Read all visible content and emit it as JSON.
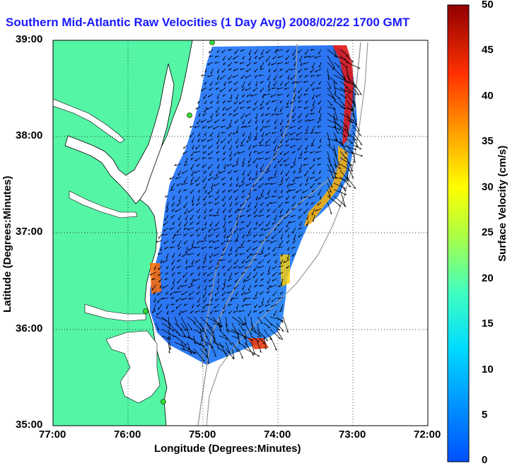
{
  "title": "Southern Mid-Atlantic Raw Velocities (1 Day Avg) 2008/02/22 1700 GMT",
  "map": {
    "xlabel": "Longitude (Degrees:Minutes)",
    "ylabel": "Latitude (Degrees:Minutes)",
    "x_ticks": [
      "77:00",
      "76:00",
      "75:00",
      "74:00",
      "73:00",
      "72:00"
    ],
    "y_ticks": [
      "39:00",
      "38:00",
      "37:00",
      "36:00",
      "35:00"
    ],
    "land_color": "#55f5a6",
    "grid": "dotted"
  },
  "colorbar": {
    "label": "Surface Velocity (cm/s)",
    "ticks": [
      "50",
      "45",
      "40",
      "35",
      "30",
      "25",
      "20",
      "15",
      "10",
      "5",
      "0"
    ],
    "range": [
      0,
      50
    ],
    "colormap": "jet"
  }
}
